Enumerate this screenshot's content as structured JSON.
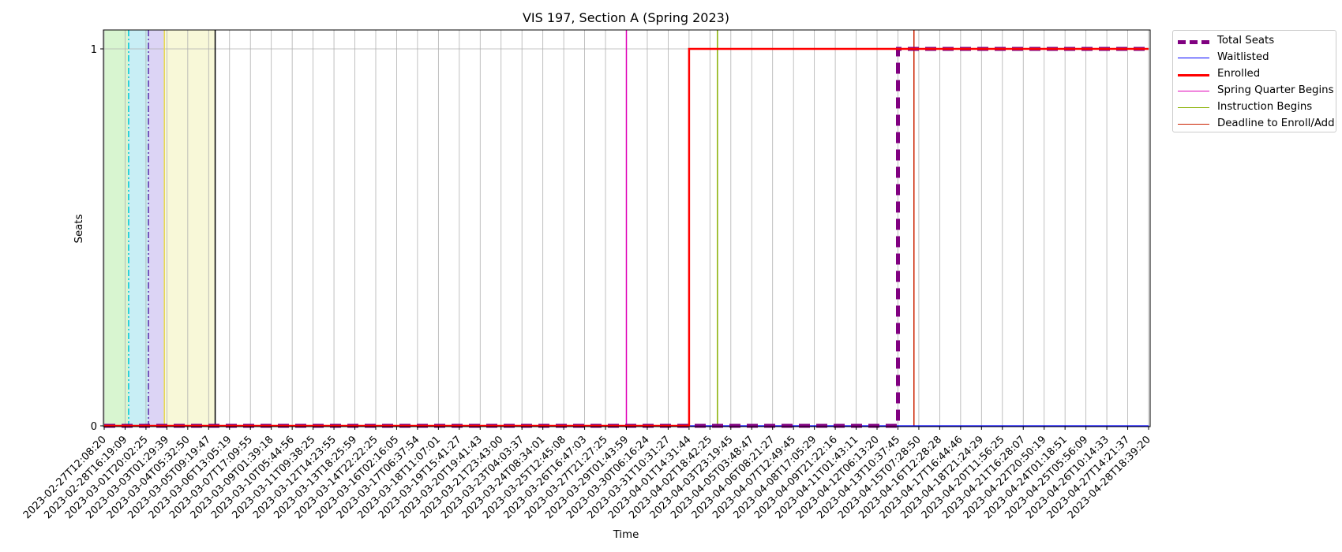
{
  "chart_data": {
    "type": "line",
    "title": "VIS 197, Section A (Spring 2023)",
    "xlabel": "Time",
    "ylabel": "Seats",
    "y_ticks": [
      "0",
      "1"
    ],
    "ylim": [
      0,
      1.05
    ],
    "grid": true,
    "legend_position": "outside-top-right",
    "x_ticks": [
      "2023-02-27T12:08:20",
      "2023-02-28T16:19:09",
      "2023-03-01T20:02:25",
      "2023-03-03T01:29:39",
      "2023-03-04T05:32:50",
      "2023-03-05T09:19:47",
      "2023-03-06T13:05:19",
      "2023-03-07T17:09:55",
      "2023-03-09T01:39:18",
      "2023-03-10T05:44:56",
      "2023-03-11T09:38:25",
      "2023-03-12T14:23:55",
      "2023-03-13T18:25:59",
      "2023-03-14T22:22:25",
      "2023-03-16T02:16:05",
      "2023-03-17T06:37:54",
      "2023-03-18T11:07:01",
      "2023-03-19T15:41:27",
      "2023-03-20T19:41:43",
      "2023-03-21T23:43:00",
      "2023-03-23T04:03:37",
      "2023-03-24T08:34:01",
      "2023-03-25T12:45:08",
      "2023-03-26T16:47:03",
      "2023-03-27T21:27:25",
      "2023-03-29T01:43:59",
      "2023-03-30T06:16:24",
      "2023-03-31T10:31:27",
      "2023-04-01T14:31:44",
      "2023-04-02T18:42:25",
      "2023-04-03T23:19:45",
      "2023-04-05T03:48:47",
      "2023-04-06T08:21:27",
      "2023-04-07T12:49:45",
      "2023-04-08T17:05:29",
      "2023-04-09T21:22:16",
      "2023-04-11T01:43:11",
      "2023-04-12T06:13:20",
      "2023-04-13T10:37:45",
      "2023-04-15T07:28:50",
      "2023-04-16T12:28:28",
      "2023-04-17T16:44:46",
      "2023-04-18T21:24:29",
      "2023-04-20T11:56:25",
      "2023-04-21T16:28:07",
      "2023-04-22T20:50:19",
      "2023-04-24T01:18:51",
      "2023-04-25T05:56:09",
      "2023-04-26T10:14:33",
      "2023-04-27T14:21:37",
      "2023-04-28T18:39:20"
    ],
    "series": [
      {
        "name": "Total Seats",
        "color": "#800080",
        "style": "dashed-thick",
        "points": [
          [
            "2023-02-27T12:08:20",
            0
          ],
          [
            "2023-04-13T10:37:45",
            0
          ],
          [
            "2023-04-13T10:37:45",
            1
          ],
          [
            "2023-04-28T18:39:20",
            1
          ]
        ]
      },
      {
        "name": "Waitlisted",
        "color": "#0000ff",
        "style": "solid-thin",
        "points": [
          [
            "2023-02-27T12:08:20",
            0
          ],
          [
            "2023-04-28T18:39:20",
            0
          ]
        ]
      },
      {
        "name": "Enrolled",
        "color": "#ff0000",
        "style": "solid-thick",
        "points": [
          [
            "2023-02-27T12:08:20",
            0
          ],
          [
            "2023-04-01T14:31:44",
            0
          ],
          [
            "2023-04-01T14:31:44",
            1
          ],
          [
            "2023-04-28T18:39:20",
            1
          ]
        ]
      }
    ],
    "events": [
      {
        "name": "Spring Quarter Begins",
        "color": "#e000b8",
        "x": "2023-03-29T01:43:59"
      },
      {
        "name": "Instruction Begins",
        "color": "#88b000",
        "x": "2023-04-03T05:00:00"
      },
      {
        "name": "Deadline to Enroll/Add",
        "color": "#cc2200",
        "x": "2023-04-14T21:00:00"
      }
    ],
    "unlabeled_markers": [
      {
        "color": "#00c8d8",
        "x": "2023-02-28T21:00:00",
        "style": "dashdot"
      },
      {
        "color": "#5a2aa8",
        "x": "2023-03-01T23:30:00",
        "style": "dashdot"
      },
      {
        "color": "#e8d850",
        "x": "2023-03-02T22:00:00",
        "style": "solid"
      },
      {
        "color": "#000000",
        "x": "2023-03-05T18:00:00",
        "style": "solid"
      }
    ],
    "shaded_regions": [
      {
        "color": "#d8f5d0",
        "start": "2023-02-27T12:08:20",
        "end": "2023-02-28T21:00:00"
      },
      {
        "color": "#c8eef5",
        "start": "2023-02-28T21:00:00",
        "end": "2023-03-01T23:30:00"
      },
      {
        "color": "#dcd4f5",
        "start": "2023-03-01T23:30:00",
        "end": "2023-03-02T22:00:00"
      },
      {
        "color": "#f8f8d8",
        "start": "2023-03-02T22:00:00",
        "end": "2023-03-05T18:00:00"
      }
    ]
  },
  "legend": {
    "items": [
      {
        "label": "Total Seats",
        "color": "#800080",
        "style": "dashed-thick"
      },
      {
        "label": "Waitlisted",
        "color": "#0000ff",
        "style": "solid-thin"
      },
      {
        "label": "Enrolled",
        "color": "#ff0000",
        "style": "solid-thick"
      },
      {
        "label": "Spring Quarter Begins",
        "color": "#e000b8",
        "style": "solid"
      },
      {
        "label": "Instruction Begins",
        "color": "#88b000",
        "style": "solid"
      },
      {
        "label": "Deadline to Enroll/Add",
        "color": "#cc2200",
        "style": "solid"
      }
    ]
  }
}
